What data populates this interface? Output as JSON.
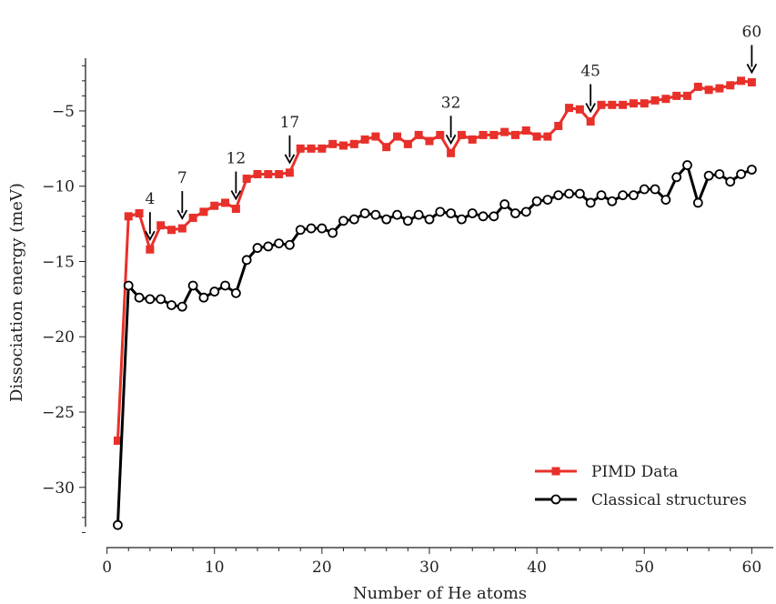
{
  "chart_data": {
    "type": "line",
    "title": "",
    "xlabel": "Number of He atoms",
    "ylabel": "Dissociation energy (meV)",
    "xlim": [
      -2,
      62
    ],
    "ylim": [
      -34,
      -1.5
    ],
    "x_ticks": [
      0,
      10,
      20,
      30,
      40,
      50,
      60
    ],
    "y_ticks": [
      -30,
      -25,
      -20,
      -15,
      -10,
      -5
    ],
    "x_tick_labels": [
      "0",
      "10",
      "20",
      "30",
      "40",
      "50",
      "60"
    ],
    "y_tick_labels": [
      "−30",
      "−25",
      "−20",
      "−15",
      "−10",
      "−5"
    ],
    "grid": false,
    "legend_position": "lower-right",
    "series": [
      {
        "name": "PIMD Data",
        "color": "#e8302a",
        "marker": "square-filled",
        "x": [
          1,
          2,
          3,
          4,
          5,
          6,
          7,
          8,
          9,
          10,
          11,
          12,
          13,
          14,
          15,
          16,
          17,
          18,
          19,
          20,
          21,
          22,
          23,
          24,
          25,
          26,
          27,
          28,
          29,
          30,
          31,
          32,
          33,
          34,
          35,
          36,
          37,
          38,
          39,
          40,
          41,
          42,
          43,
          44,
          45,
          46,
          47,
          48,
          49,
          50,
          51,
          52,
          53,
          54,
          55,
          56,
          57,
          58,
          59,
          60
        ],
        "y": [
          -26.9,
          -12.0,
          -11.8,
          -14.2,
          -12.6,
          -12.9,
          -12.8,
          -12.1,
          -11.7,
          -11.3,
          -11.1,
          -11.5,
          -9.5,
          -9.2,
          -9.2,
          -9.2,
          -9.1,
          -7.5,
          -7.5,
          -7.5,
          -7.2,
          -7.3,
          -7.2,
          -6.9,
          -6.7,
          -7.4,
          -6.7,
          -7.2,
          -6.6,
          -7.0,
          -6.6,
          -7.8,
          -6.6,
          -6.9,
          -6.6,
          -6.6,
          -6.4,
          -6.6,
          -6.3,
          -6.7,
          -6.7,
          -6.0,
          -4.8,
          -4.9,
          -5.7,
          -4.6,
          -4.6,
          -4.6,
          -4.5,
          -4.5,
          -4.3,
          -4.2,
          -4.0,
          -4.0,
          -3.4,
          -3.6,
          -3.5,
          -3.3,
          -3.0,
          -3.1
        ]
      },
      {
        "name": "Classical structures",
        "color": "#000000",
        "marker": "circle-open",
        "x": [
          1,
          2,
          3,
          4,
          5,
          6,
          7,
          8,
          9,
          10,
          11,
          12,
          13,
          14,
          15,
          16,
          17,
          18,
          19,
          20,
          21,
          22,
          23,
          24,
          25,
          26,
          27,
          28,
          29,
          30,
          31,
          32,
          33,
          34,
          35,
          36,
          37,
          38,
          39,
          40,
          41,
          42,
          43,
          44,
          45,
          46,
          47,
          48,
          49,
          50,
          51,
          52,
          53,
          54,
          55,
          56,
          57,
          58,
          59,
          60
        ],
        "y": [
          -32.5,
          -16.6,
          -17.4,
          -17.5,
          -17.5,
          -17.9,
          -18.0,
          -16.6,
          -17.4,
          -17.0,
          -16.6,
          -17.1,
          -14.9,
          -14.1,
          -14.0,
          -13.8,
          -13.9,
          -12.9,
          -12.8,
          -12.8,
          -13.1,
          -12.3,
          -12.2,
          -11.8,
          -11.9,
          -12.2,
          -11.9,
          -12.3,
          -11.9,
          -12.2,
          -11.7,
          -11.8,
          -12.2,
          -11.8,
          -12.0,
          -12.0,
          -11.2,
          -11.8,
          -11.7,
          -11.0,
          -10.9,
          -10.6,
          -10.5,
          -10.5,
          -11.1,
          -10.6,
          -11.0,
          -10.6,
          -10.6,
          -10.2,
          -10.2,
          -10.9,
          -9.4,
          -8.6,
          -11.1,
          -9.3,
          -9.2,
          -9.7,
          -9.2,
          -8.9
        ]
      }
    ],
    "annotations": [
      {
        "text": "4",
        "x": 4,
        "y": -14.2
      },
      {
        "text": "7",
        "x": 7,
        "y": -12.8
      },
      {
        "text": "12",
        "x": 12,
        "y": -11.5
      },
      {
        "text": "17",
        "x": 17,
        "y": -9.1
      },
      {
        "text": "32",
        "x": 32,
        "y": -7.8
      },
      {
        "text": "45",
        "x": 45,
        "y": -5.7
      },
      {
        "text": "60",
        "x": 60,
        "y": -3.1
      }
    ]
  }
}
